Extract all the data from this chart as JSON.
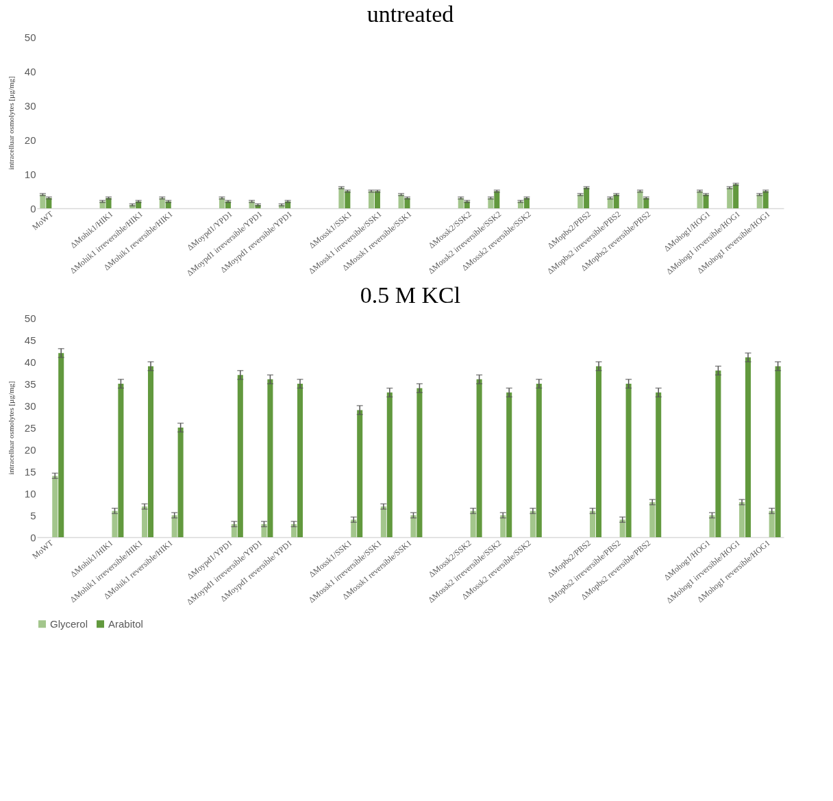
{
  "chart_data": [
    {
      "type": "bar",
      "title": "untreated",
      "ylabel": "intracelluar osmolytes [µg/mg]",
      "categories": [
        "MoWT",
        null,
        "ΔMohik1/HIK1",
        "ΔMohik1 irreversible/HIK1",
        "ΔMohik1 reversible/HIK1",
        null,
        "ΔMoypd1/YPD1",
        "ΔMoypd1 irreversible/YPD1",
        "ΔMoypd1 reversible/YPD1",
        null,
        "ΔMossk1/SSK1",
        "ΔMossk1 irreversible/SSK1",
        "ΔMossk1 reversible/SSK1",
        null,
        "ΔMossk2/SSK2",
        "ΔMossk2 irreversible/SSK2",
        "ΔMossk2 reversible/SSK2",
        null,
        "ΔMopbs2/PBS2",
        "ΔMopbs2 irreversible/PBS2",
        "ΔMopbs2 reversible/PBS2",
        null,
        "ΔMohog1/HOG1",
        "ΔMohog1 irrversible/HOG1",
        "ΔMohog1 reversible/HOG1"
      ],
      "series": [
        {
          "color": "#a3c68c",
          "values": [
            4,
            null,
            2,
            1,
            3,
            null,
            3,
            2,
            1,
            null,
            6,
            5,
            4,
            null,
            3,
            3,
            2,
            null,
            4,
            3,
            5,
            null,
            5,
            6,
            4
          ],
          "errors": [
            0.3,
            null,
            0.3,
            0.3,
            0.3,
            null,
            0.3,
            0.3,
            0.3,
            null,
            0.3,
            0.3,
            0.3,
            null,
            0.3,
            0.3,
            0.3,
            null,
            0.3,
            0.3,
            0.3,
            null,
            0.3,
            0.3,
            0.3
          ]
        },
        {
          "color": "#62993e",
          "values": [
            3,
            null,
            3,
            2,
            2,
            null,
            2,
            1,
            2,
            null,
            5,
            5,
            3,
            null,
            2,
            5,
            3,
            null,
            6,
            4,
            3,
            null,
            4,
            7,
            5
          ],
          "errors": [
            0.3,
            null,
            0.3,
            0.3,
            0.3,
            null,
            0.3,
            0.3,
            0.3,
            null,
            0.3,
            0.3,
            0.3,
            null,
            0.3,
            0.3,
            0.3,
            null,
            0.3,
            0.3,
            0.3,
            null,
            0.3,
            0.3,
            0.3
          ]
        }
      ],
      "ylim": [
        0,
        50
      ],
      "yticks": [
        0,
        10,
        20,
        30,
        40,
        50
      ],
      "legend": false
    },
    {
      "type": "bar",
      "title": "0.5 M KCl",
      "ylabel": "intracelluar osmolytes [µg/mg]",
      "categories": [
        "MoWT",
        null,
        "ΔMohik1/HIK1",
        "ΔMohik1 irreversible/HIK1",
        "ΔMohik1 reversible/HIK1",
        null,
        "ΔMoypd1/YPD1",
        "ΔMoypd1 irreversible/YPD1",
        "ΔMoypd1 reversible/YPD1",
        null,
        "ΔMossk1/SSK1",
        "ΔMossk1 irreversible/SSK1",
        "ΔMossk1 reversible/SSK1",
        null,
        "ΔMossk2/SSK2",
        "ΔMossk2 irreversible/SSK2",
        "ΔMossk2 reversible/SSK2",
        null,
        "ΔMopbs2/PBS2",
        "ΔMopbs2 irreversible/PBS2",
        "ΔMopbs2 reversible/PBS2",
        null,
        "ΔMohog1/HOG1",
        "ΔMohog1 irrversible/HOG1",
        "ΔMohog1 reversible/HOG1"
      ],
      "series": [
        {
          "name": "Glycerol",
          "color": "#a3c68c",
          "values": [
            14,
            null,
            6,
            7,
            5,
            null,
            3,
            3,
            3,
            null,
            4,
            7,
            5,
            null,
            6,
            5,
            6,
            null,
            6,
            4,
            8,
            null,
            5,
            8,
            6
          ],
          "errors": [
            0.6,
            null,
            0.6,
            0.6,
            0.6,
            null,
            0.6,
            0.6,
            0.6,
            null,
            0.6,
            0.6,
            0.6,
            null,
            0.6,
            0.6,
            0.6,
            null,
            0.6,
            0.6,
            0.6,
            null,
            0.6,
            0.6,
            0.6
          ]
        },
        {
          "name": "Arabitol",
          "color": "#62993e",
          "values": [
            42,
            null,
            35,
            39,
            25,
            null,
            37,
            36,
            35,
            null,
            29,
            33,
            34,
            null,
            36,
            33,
            35,
            null,
            39,
            35,
            33,
            null,
            38,
            41,
            39
          ],
          "errors": [
            1,
            null,
            1,
            1,
            1,
            null,
            1,
            1,
            1,
            null,
            1,
            1,
            1,
            null,
            1,
            1,
            1,
            null,
            1,
            1,
            1,
            null,
            1,
            1,
            1
          ]
        }
      ],
      "ylim": [
        0,
        50
      ],
      "yticks": [
        0,
        5,
        10,
        15,
        20,
        25,
        30,
        35,
        40,
        45,
        50
      ],
      "legend": "bottom"
    }
  ]
}
